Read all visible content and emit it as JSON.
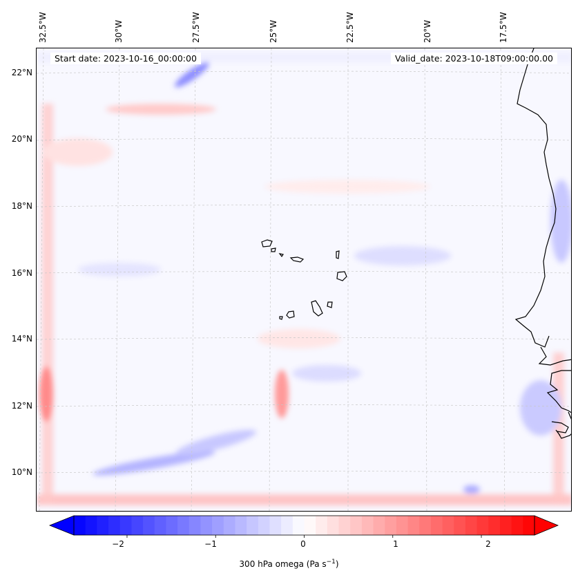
{
  "header": {
    "start_date": "Start date: 2023-10-16_00:00:00",
    "valid_date": "Valid_date: 2023-10-18T09:00:00.00"
  },
  "axes": {
    "lon_labels": [
      "32.5°W",
      "30°W",
      "27.5°W",
      "25°W",
      "22.5°W",
      "20°W",
      "17.5°W"
    ],
    "lat_labels": [
      "22°N",
      "20°N",
      "18°N",
      "16°N",
      "14°N",
      "12°N",
      "10°N"
    ]
  },
  "colorbar": {
    "label": "300 hPa omega (Pa s",
    "label_sup": "−1",
    "label_close": ")",
    "ticks": [
      "−2",
      "−1",
      "0",
      "1",
      "2"
    ],
    "min": -2.6,
    "max": 2.6,
    "tick_values": [
      -2,
      -1,
      0,
      1,
      2
    ],
    "negative_color": "#0000ff",
    "positive_color": "#ff0000"
  },
  "map": {
    "background_color": "#f8f8ff",
    "coastline_color": "#000000"
  }
}
